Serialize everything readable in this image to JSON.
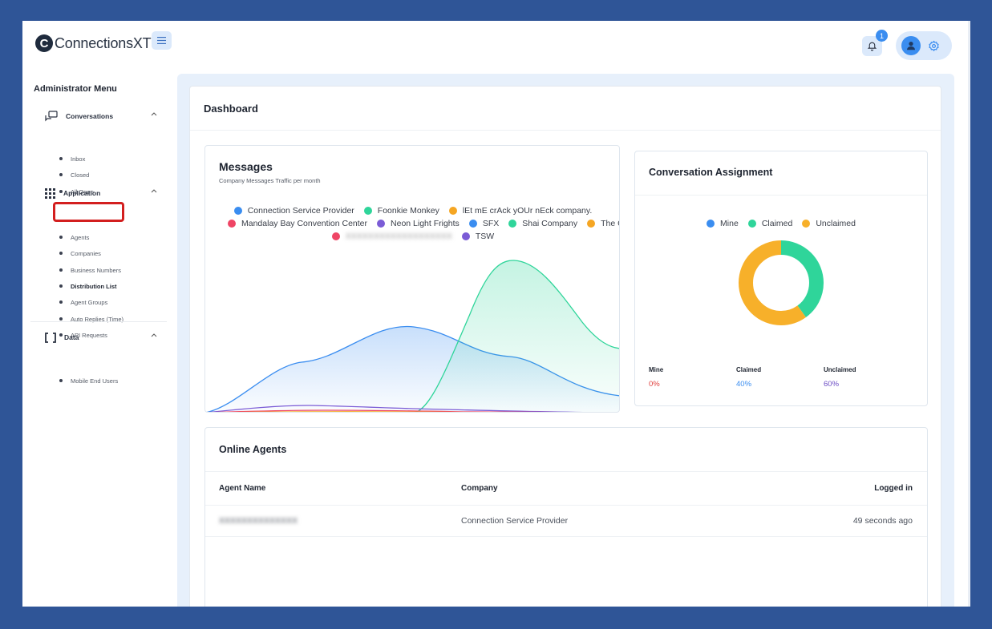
{
  "header": {
    "logo_letter": "C",
    "logo_text": "ConnectionsXT",
    "logo_tm": "™",
    "notification_count": "1"
  },
  "sidebar": {
    "title": "Administrator Menu",
    "groups": [
      {
        "label": "Conversations",
        "icon": "chat-icon",
        "items": [
          "Inbox",
          "Closed",
          "All Open"
        ]
      },
      {
        "label": "Application",
        "icon": "grid-icon",
        "items": [
          "Agents",
          "Companies",
          "Business Numbers",
          "Distribution List",
          "Agent Groups",
          "Auto Replies (Time)",
          "API Requests"
        ]
      },
      {
        "label": "Data",
        "icon": "brackets-icon",
        "items": [
          "Mobile End Users"
        ]
      }
    ],
    "active_item": "Distribution List"
  },
  "dashboard": {
    "title": "Dashboard"
  },
  "messages": {
    "title": "Messages",
    "subtitle": "Company Messages Traffic per month",
    "legend": [
      {
        "name": "Connection Service Provider",
        "color": "#3a8df0"
      },
      {
        "name": "Foonkie Monkey",
        "color": "#2fd59a"
      },
      {
        "name": "lEt mE crAck yOUr nEck company.",
        "color": "#f5a623"
      },
      {
        "name": "Mandalay Bay Convention Center",
        "color": "#ef4565"
      },
      {
        "name": "Neon Light Frights",
        "color": "#7b5cd6"
      },
      {
        "name": "SFX",
        "color": "#3a8df0"
      },
      {
        "name": "Shai Company",
        "color": "#2fd59a"
      },
      {
        "name": "The Ch",
        "color": "#f5a623"
      },
      {
        "name": "TSW",
        "color": "#7b5cd6"
      }
    ]
  },
  "assignment": {
    "title": "Conversation Assignment",
    "legend": [
      {
        "name": "Mine",
        "color": "#3a8df0"
      },
      {
        "name": "Claimed",
        "color": "#2fd59a"
      },
      {
        "name": "Unclaimed",
        "color": "#f7b02a"
      }
    ],
    "stats": [
      {
        "label": "Mine",
        "value": "0%",
        "color": "#e0413e",
        "fraction": 0
      },
      {
        "label": "Claimed",
        "value": "40%",
        "color": "#3a8df0",
        "fraction": 0.4
      },
      {
        "label": "Unclaimed",
        "value": "60%",
        "color": "#6a4bc4",
        "fraction": 0.6
      }
    ]
  },
  "agents": {
    "title": "Online Agents",
    "columns": [
      "Agent Name",
      "Company",
      "Logged in"
    ],
    "rows": [
      {
        "company": "Connection Service Provider",
        "logged_in": "49 seconds ago"
      }
    ]
  }
}
